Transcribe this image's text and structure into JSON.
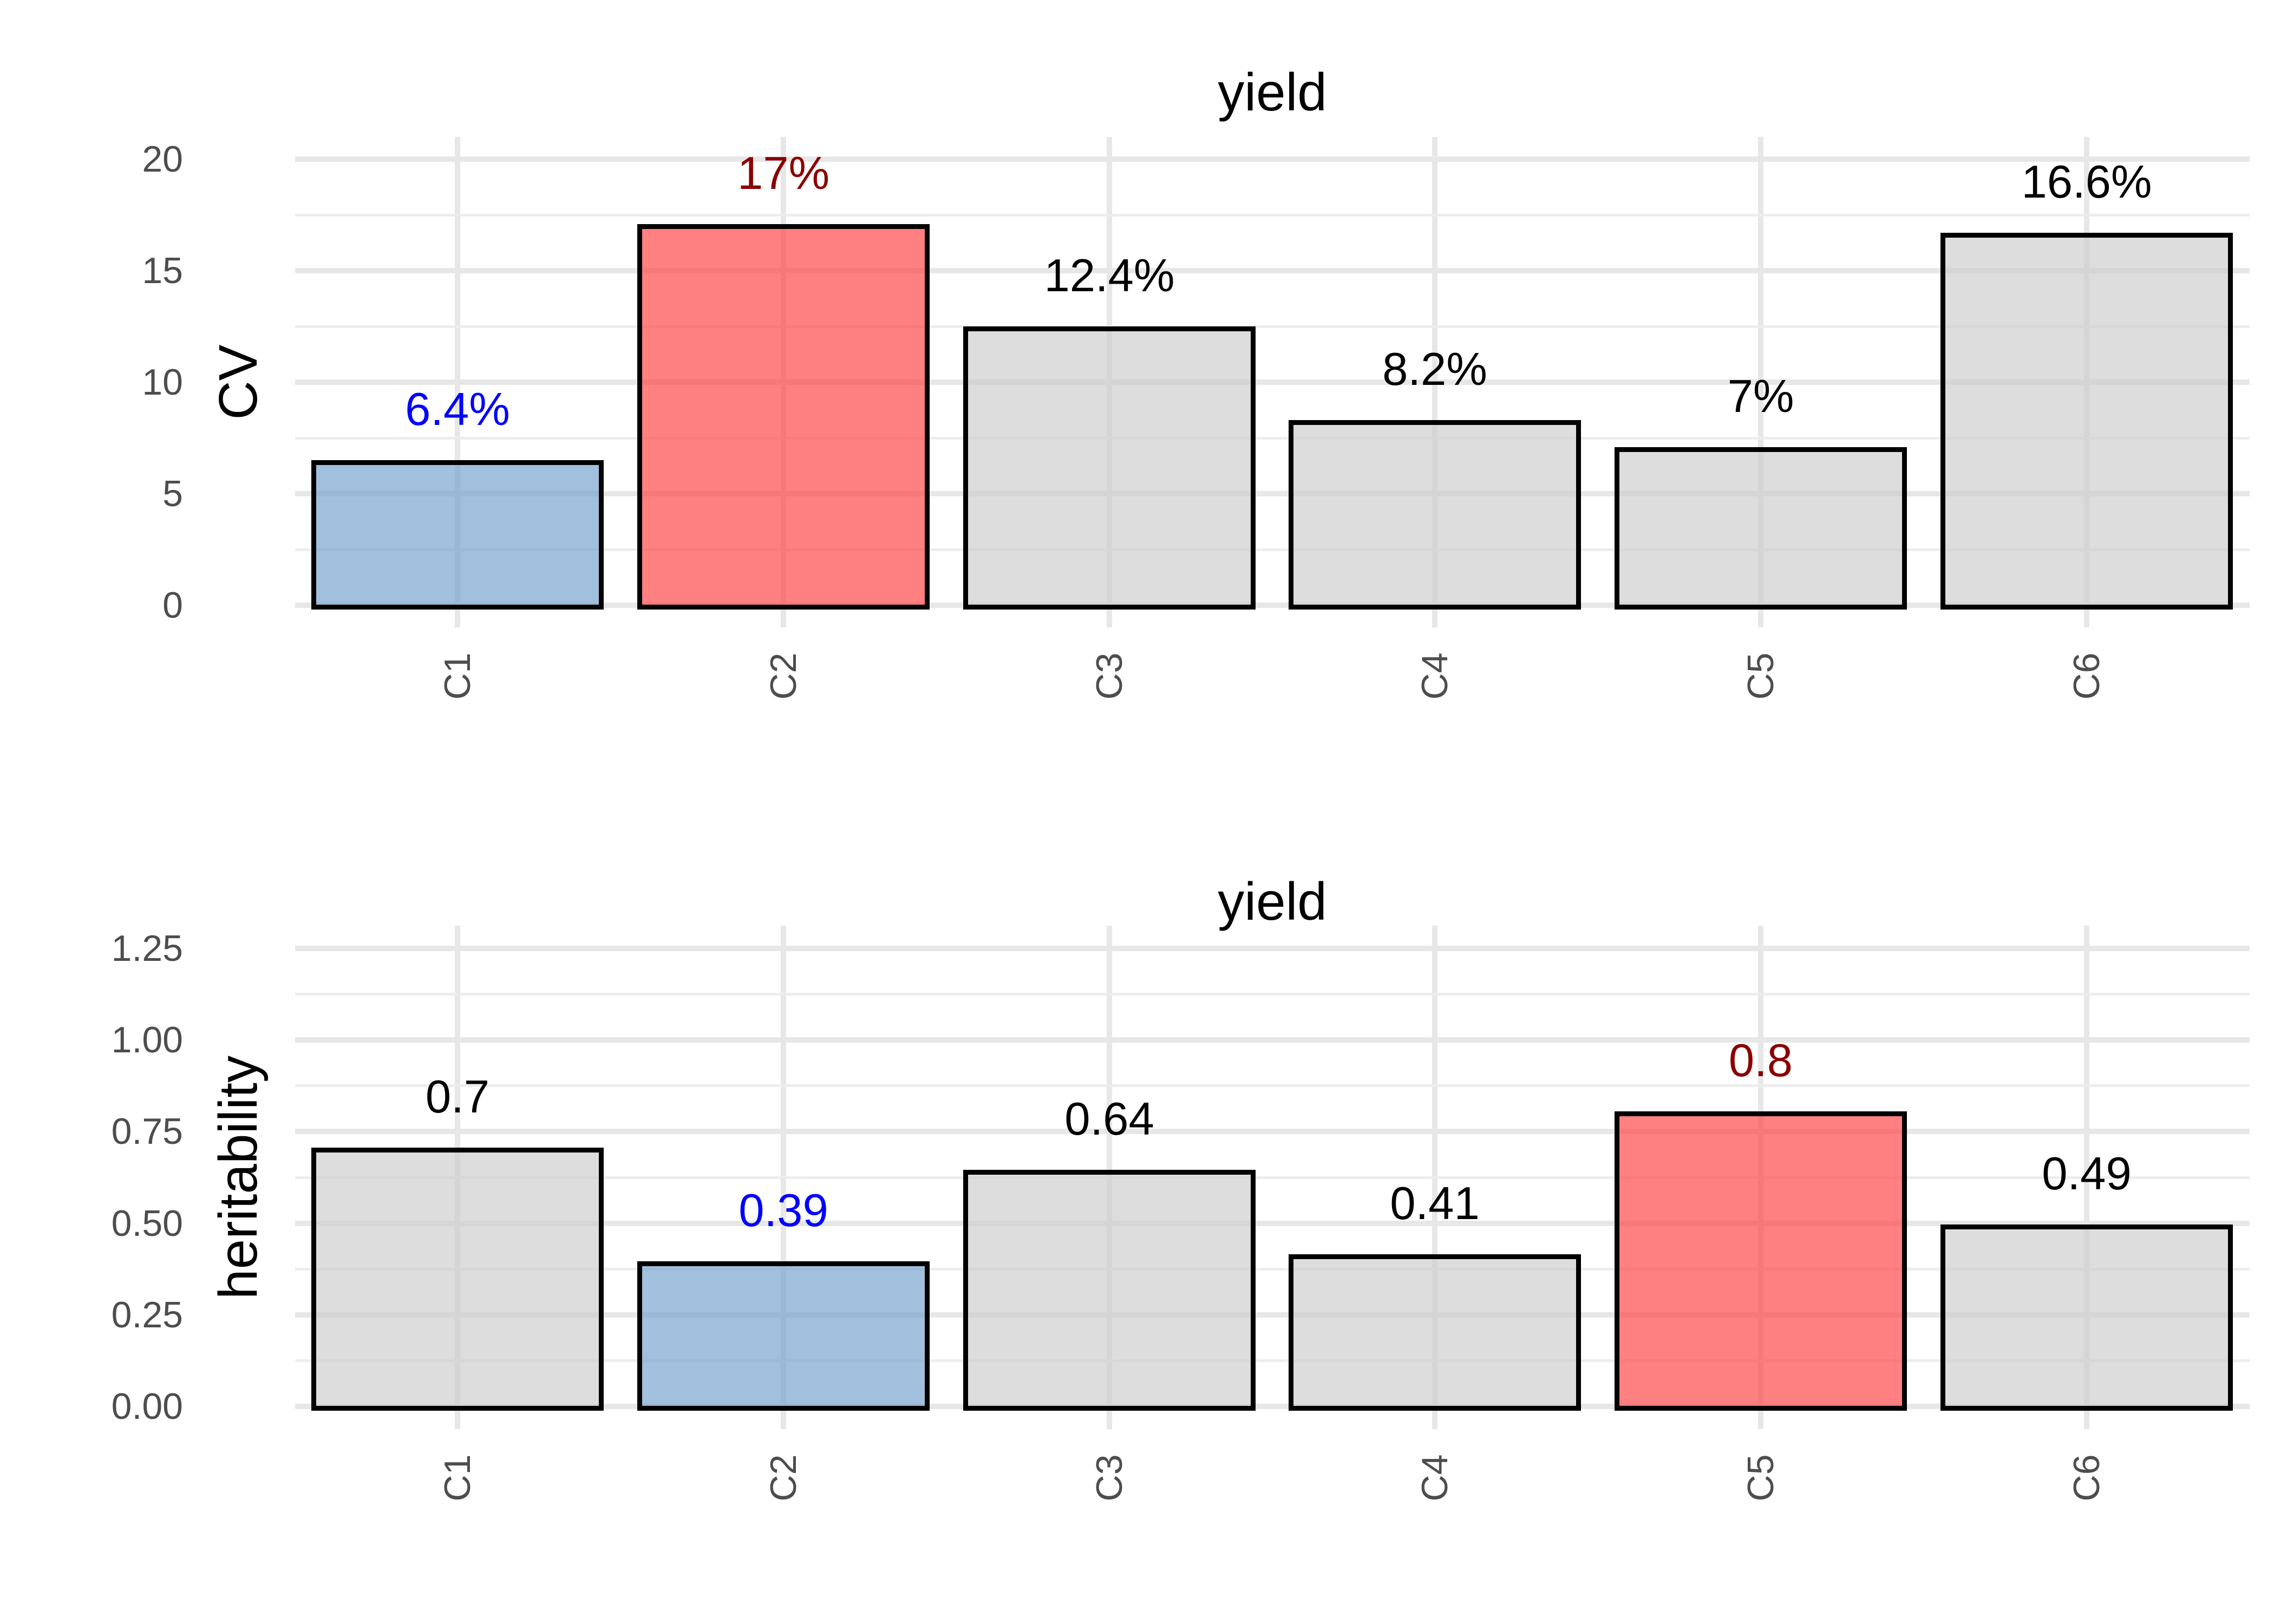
{
  "figure": {
    "background": "#ffffff"
  },
  "palette": {
    "bar_blue": "rgba(113,160,204,0.66)",
    "bar_red": "rgba(253,62,62,0.66)",
    "bar_gray": "rgba(204,204,204,0.66)",
    "bar_border": "#000000",
    "label_blue": "#0000ff",
    "label_darkred": "#8b0000",
    "label_black": "#000000",
    "grid_major": "#e7e7e7",
    "grid_minor": "#ededed",
    "tick_text": "#4d4d4d",
    "title_text": "#000000"
  },
  "chart_data": [
    {
      "type": "bar",
      "title": "yield",
      "ylabel": "CV",
      "xlabel": "",
      "categories": [
        "C1",
        "C2",
        "C3",
        "C4",
        "C5",
        "C6"
      ],
      "values": [
        6.4,
        17,
        12.4,
        8.2,
        7,
        16.6
      ],
      "labels": [
        "6.4%",
        "17%",
        "12.4%",
        "8.2%",
        "7%",
        "16.6%"
      ],
      "label_colors": [
        "label_blue",
        "label_darkred",
        "label_black",
        "label_black",
        "label_black",
        "label_black"
      ],
      "bar_fills": [
        "bar_blue",
        "bar_red",
        "bar_gray",
        "bar_gray",
        "bar_gray",
        "bar_gray"
      ],
      "ylim": [
        0,
        20
      ],
      "yticks": [
        0,
        5,
        10,
        15,
        20
      ],
      "ytick_labels": [
        "0",
        "5",
        "10",
        "15",
        "20"
      ],
      "yticks_minor": [
        2.5,
        7.5,
        12.5,
        17.5
      ],
      "grid": "major and minor horizontal, vertical at category centers",
      "legend": "none"
    },
    {
      "type": "bar",
      "title": "yield",
      "ylabel": "heritability",
      "xlabel": "",
      "categories": [
        "C1",
        "C2",
        "C3",
        "C4",
        "C5",
        "C6"
      ],
      "values": [
        0.7,
        0.39,
        0.64,
        0.41,
        0.8,
        0.49
      ],
      "labels": [
        "0.7",
        "0.39",
        "0.64",
        "0.41",
        "0.8",
        "0.49"
      ],
      "label_colors": [
        "label_black",
        "label_blue",
        "label_black",
        "label_black",
        "label_darkred",
        "label_black"
      ],
      "bar_fills": [
        "bar_gray",
        "bar_blue",
        "bar_gray",
        "bar_gray",
        "bar_red",
        "bar_gray"
      ],
      "ylim": [
        0,
        1.25
      ],
      "yticks": [
        0,
        0.25,
        0.5,
        0.75,
        1,
        1.25
      ],
      "ytick_labels": [
        "0.00",
        "0.25",
        "0.50",
        "0.75",
        "1.00",
        "1.25"
      ],
      "yticks_minor": [
        0.125,
        0.375,
        0.625,
        0.875,
        1.125
      ],
      "grid": "major and minor horizontal, vertical at category centers",
      "legend": "none"
    }
  ]
}
